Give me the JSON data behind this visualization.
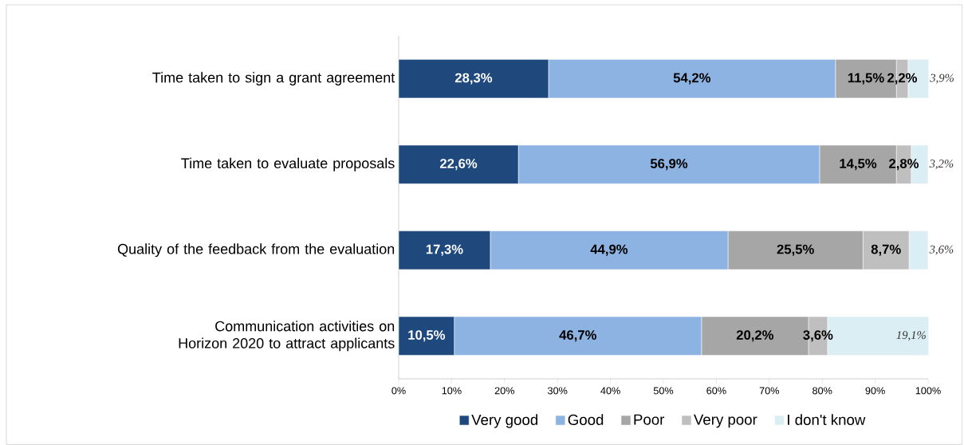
{
  "chart_data": {
    "type": "bar",
    "orientation": "horizontal",
    "stacked": true,
    "categories": [
      "Time taken to sign a grant agreement",
      "Time taken to evaluate proposals",
      "Quality of the feedback from the evaluation",
      "Communication activities on Horizon 2020 to attract applicants"
    ],
    "series": [
      {
        "name": "Very good",
        "color": "#1f497d",
        "values": [
          28.3,
          22.6,
          17.3,
          10.5
        ],
        "value_labels": [
          "28,3%",
          "22,6%",
          "17,3%",
          "10,5%"
        ]
      },
      {
        "name": "Good",
        "color": "#8db3e2",
        "values": [
          54.2,
          56.9,
          44.9,
          46.7
        ],
        "value_labels": [
          "54,2%",
          "56,9%",
          "44,9%",
          "46,7%"
        ]
      },
      {
        "name": "Poor",
        "color": "#a6a6a6",
        "values": [
          11.5,
          14.5,
          25.5,
          20.2
        ],
        "value_labels": [
          "11,5%",
          "14,5%",
          "25,5%",
          "20,2%"
        ]
      },
      {
        "name": "Very poor",
        "color": "#bfbfbf",
        "values": [
          2.2,
          2.8,
          8.7,
          3.6
        ],
        "value_labels": [
          "2,2%",
          "2,8%",
          "8,7%",
          "3,6%"
        ]
      },
      {
        "name": "I don't know",
        "color": "#dbeef4",
        "values": [
          3.9,
          3.2,
          3.6,
          19.1
        ],
        "value_labels": [
          "3,9%",
          "3,2%",
          "3,6%",
          "19,1%"
        ]
      }
    ],
    "xlim": [
      0,
      100
    ],
    "xticks": [
      {
        "value": 0,
        "label": "0%"
      },
      {
        "value": 10,
        "label": "10%"
      },
      {
        "value": 20,
        "label": "20%"
      },
      {
        "value": 30,
        "label": "30%"
      },
      {
        "value": 40,
        "label": "40%"
      },
      {
        "value": 50,
        "label": "50%"
      },
      {
        "value": 60,
        "label": "60%"
      },
      {
        "value": 70,
        "label": "70%"
      },
      {
        "value": 80,
        "label": "80%"
      },
      {
        "value": 90,
        "label": "90%"
      },
      {
        "value": 100,
        "label": "100%"
      }
    ],
    "legend": "bottom"
  }
}
